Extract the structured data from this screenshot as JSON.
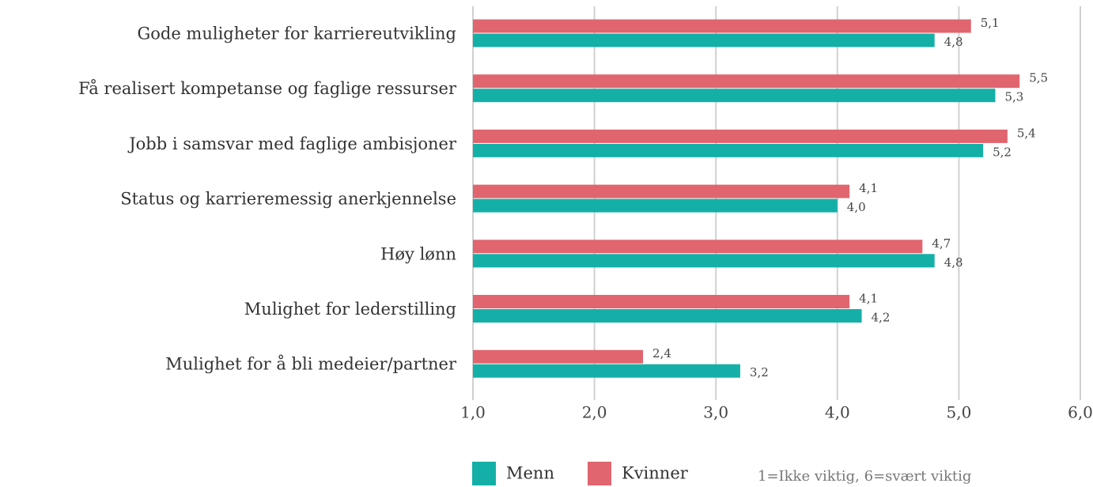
{
  "chart_data": {
    "type": "barh",
    "categories": [
      "Gode muligheter for karriereutvikling",
      "Få realisert kompetanse og faglige ressurser",
      "Jobb i samsvar med faglige ambisjoner",
      "Status og karrieremessig anerkjennelse",
      "Høy lønn",
      "Mulighet for lederstilling",
      "Mulighet for å bli medeier/partner"
    ],
    "series": [
      {
        "name": "Menn",
        "color": "#14b0a7",
        "values": [
          4.8,
          5.3,
          5.2,
          4.0,
          4.8,
          4.2,
          3.2
        ],
        "value_labels": [
          "4,8",
          "5,3",
          "5,2",
          "4,0",
          "4,8",
          "4,2",
          "3,2"
        ]
      },
      {
        "name": "Kvinner",
        "color": "#e0656f",
        "values": [
          5.1,
          5.5,
          5.4,
          4.1,
          4.7,
          4.1,
          2.4
        ],
        "value_labels": [
          "5,1",
          "5,5",
          "5,4",
          "4,1",
          "4,7",
          "4,1",
          "2,4"
        ]
      }
    ],
    "xlim": [
      1,
      6
    ],
    "xticks": [
      {
        "value": 1,
        "label": "1,0"
      },
      {
        "value": 2,
        "label": "2,0"
      },
      {
        "value": 3,
        "label": "3,0"
      },
      {
        "value": 4,
        "label": "4,0"
      },
      {
        "value": 5,
        "label": "5,0"
      },
      {
        "value": 6,
        "label": "6,0"
      }
    ],
    "grid": true,
    "legend": "bottom",
    "annotation": "1=Ikke viktig, 6=svært viktig"
  }
}
